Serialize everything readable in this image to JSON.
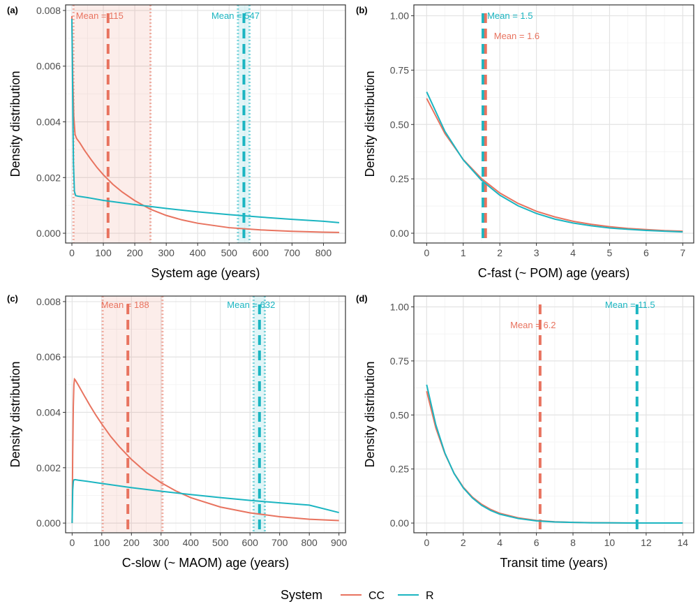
{
  "colors": {
    "CC": "#E8735F",
    "R": "#1BB5C1"
  },
  "legend": {
    "title": "System",
    "items": [
      "CC",
      "R"
    ]
  },
  "chart_data": [
    {
      "tag": "(a)",
      "type": "line",
      "xlabel": "System age (years)",
      "ylabel": "Density distribution",
      "xlim": [
        -20,
        870
      ],
      "ylim": [
        -0.00035,
        0.0082
      ],
      "xticks": [
        0,
        100,
        200,
        300,
        400,
        500,
        600,
        700,
        800
      ],
      "yticks": [
        0,
        0.002,
        0.004,
        0.006,
        0.008
      ],
      "ytick_labels": [
        "0.000",
        "0.002",
        "0.004",
        "0.006",
        "0.008"
      ],
      "series": [
        {
          "name": "CC",
          "x": [
            0,
            3,
            6,
            10,
            15,
            25,
            40,
            60,
            80,
            100,
            130,
            160,
            200,
            250,
            300,
            350,
            400,
            500,
            600,
            700,
            800,
            850
          ],
          "y": [
            0.0078,
            0.0055,
            0.0042,
            0.00355,
            0.0034,
            0.00325,
            0.00298,
            0.00266,
            0.00236,
            0.0021,
            0.00176,
            0.00148,
            0.00117,
            0.00086,
            0.00064,
            0.00048,
            0.00036,
            0.0002,
            0.00012,
            7e-05,
            4e-05,
            3e-05
          ]
        },
        {
          "name": "R",
          "x": [
            0,
            2,
            5,
            8,
            12,
            20,
            50,
            100,
            200,
            300,
            400,
            500,
            600,
            700,
            800,
            850
          ],
          "y": [
            0.0077,
            0.0055,
            0.0025,
            0.0015,
            0.00135,
            0.00133,
            0.00128,
            0.00118,
            0.00103,
            0.00089,
            0.00077,
            0.00067,
            0.00058,
            0.0005,
            0.00043,
            0.00038
          ]
        }
      ],
      "means": [
        {
          "series": "CC",
          "label": "Mean =  115",
          "value": 115,
          "ci": [
            5,
            250
          ]
        },
        {
          "series": "R",
          "label": "Mean =  547",
          "value": 547,
          "ci": [
            528,
            565
          ]
        }
      ]
    },
    {
      "tag": "(b)",
      "type": "line",
      "xlabel": "C-fast (~ POM) age (years)",
      "ylabel": "Density distribution",
      "xlim": [
        -0.35,
        7.3
      ],
      "ylim": [
        -0.045,
        1.05
      ],
      "xticks": [
        0,
        1,
        2,
        3,
        4,
        5,
        6,
        7
      ],
      "yticks": [
        0,
        0.25,
        0.5,
        0.75,
        1.0
      ],
      "ytick_labels": [
        "0.00",
        "0.25",
        "0.50",
        "0.75",
        "1.00"
      ],
      "series": [
        {
          "name": "CC",
          "x": [
            0,
            0.5,
            1,
            1.5,
            2,
            2.5,
            3,
            3.5,
            4,
            4.5,
            5,
            5.5,
            6,
            6.5,
            7
          ],
          "y": [
            0.62,
            0.458,
            0.339,
            0.251,
            0.185,
            0.137,
            0.101,
            0.075,
            0.055,
            0.041,
            0.03,
            0.022,
            0.017,
            0.012,
            0.009
          ]
        },
        {
          "name": "R",
          "x": [
            0,
            0.5,
            1,
            1.5,
            2,
            2.5,
            3,
            3.5,
            4,
            4.5,
            5,
            5.5,
            6,
            6.5,
            7
          ],
          "y": [
            0.65,
            0.468,
            0.337,
            0.243,
            0.175,
            0.126,
            0.091,
            0.065,
            0.047,
            0.034,
            0.024,
            0.018,
            0.013,
            0.009,
            0.006
          ]
        }
      ],
      "means": [
        {
          "series": "R",
          "label": "Mean =  1.5",
          "value": 1.54
        },
        {
          "series": "CC",
          "label": "Mean =  1.6",
          "value": 1.61
        }
      ]
    },
    {
      "tag": "(c)",
      "type": "line",
      "xlabel": "C-slow (~ MAOM) age (years)",
      "ylabel": "Density distribution",
      "xlim": [
        -22,
        922
      ],
      "ylim": [
        -0.00035,
        0.0082
      ],
      "xticks": [
        0,
        100,
        200,
        300,
        400,
        500,
        600,
        700,
        800,
        900
      ],
      "yticks": [
        0,
        0.002,
        0.004,
        0.006,
        0.008
      ],
      "ytick_labels": [
        "0.000",
        "0.002",
        "0.004",
        "0.006",
        "0.008"
      ],
      "series": [
        {
          "name": "CC",
          "x": [
            0,
            2,
            4,
            6,
            8,
            10,
            20,
            40,
            60,
            80,
            100,
            130,
            160,
            200,
            250,
            300,
            350,
            400,
            500,
            600,
            700,
            800,
            900
          ],
          "y": [
            0,
            0.0025,
            0.0042,
            0.005,
            0.0052,
            0.00518,
            0.005,
            0.00462,
            0.00425,
            0.0039,
            0.00358,
            0.00313,
            0.00275,
            0.0023,
            0.00183,
            0.00146,
            0.00116,
            0.00092,
            0.00058,
            0.00037,
            0.00023,
            0.00014,
            9e-05
          ]
        },
        {
          "name": "R",
          "x": [
            0,
            2,
            4,
            6,
            10,
            20,
            50,
            100,
            200,
            300,
            400,
            500,
            600,
            700,
            800,
            900
          ],
          "y": [
            0,
            0.0012,
            0.0015,
            0.00156,
            0.00157,
            0.00155,
            0.00151,
            0.00143,
            0.00128,
            0.00115,
            0.00103,
            0.00092,
            0.00082,
            0.00073,
            0.00065,
            0.00038
          ]
        }
      ],
      "means": [
        {
          "series": "CC",
          "label": "Mean =  188",
          "value": 188,
          "ci": [
            103,
            305
          ]
        },
        {
          "series": "R",
          "label": "Mean =  632",
          "value": 632,
          "ci": [
            612,
            650
          ]
        }
      ]
    },
    {
      "tag": "(d)",
      "type": "line",
      "xlabel": "Transit time (years)",
      "ylabel": "Density distribution",
      "xlim": [
        -0.7,
        14.6
      ],
      "ylim": [
        -0.045,
        1.05
      ],
      "xticks": [
        0,
        2,
        4,
        6,
        8,
        10,
        12,
        14
      ],
      "yticks": [
        0,
        0.25,
        0.5,
        0.75,
        1.0
      ],
      "ytick_labels": [
        "0.00",
        "0.25",
        "0.50",
        "0.75",
        "1.00"
      ],
      "series": [
        {
          "name": "CC",
          "x": [
            0,
            0.5,
            1,
            1.5,
            2,
            2.5,
            3,
            3.5,
            4,
            5,
            6,
            7,
            8,
            9,
            10,
            11,
            12,
            13,
            14
          ],
          "y": [
            0.61,
            0.44,
            0.32,
            0.23,
            0.166,
            0.12,
            0.087,
            0.063,
            0.045,
            0.024,
            0.012,
            0.006,
            0.003,
            0.002,
            0.001,
            0.0005,
            0.0003,
            0.0002,
            0.0001
          ]
        },
        {
          "name": "R",
          "x": [
            0,
            0.5,
            1,
            1.5,
            2,
            2.5,
            3,
            3.5,
            4,
            5,
            6,
            7,
            8,
            9,
            10,
            11,
            12,
            13,
            14
          ],
          "y": [
            0.64,
            0.455,
            0.323,
            0.229,
            0.163,
            0.116,
            0.082,
            0.058,
            0.041,
            0.021,
            0.01,
            0.005,
            0.003,
            0.001,
            0.001,
            0.0004,
            0.0002,
            0.0001,
            0.0001
          ]
        }
      ],
      "means": [
        {
          "series": "CC",
          "label": "Mean =  6.2",
          "value": 6.2
        },
        {
          "series": "R",
          "label": "Mean =  11.5",
          "value": 11.5
        }
      ]
    }
  ]
}
